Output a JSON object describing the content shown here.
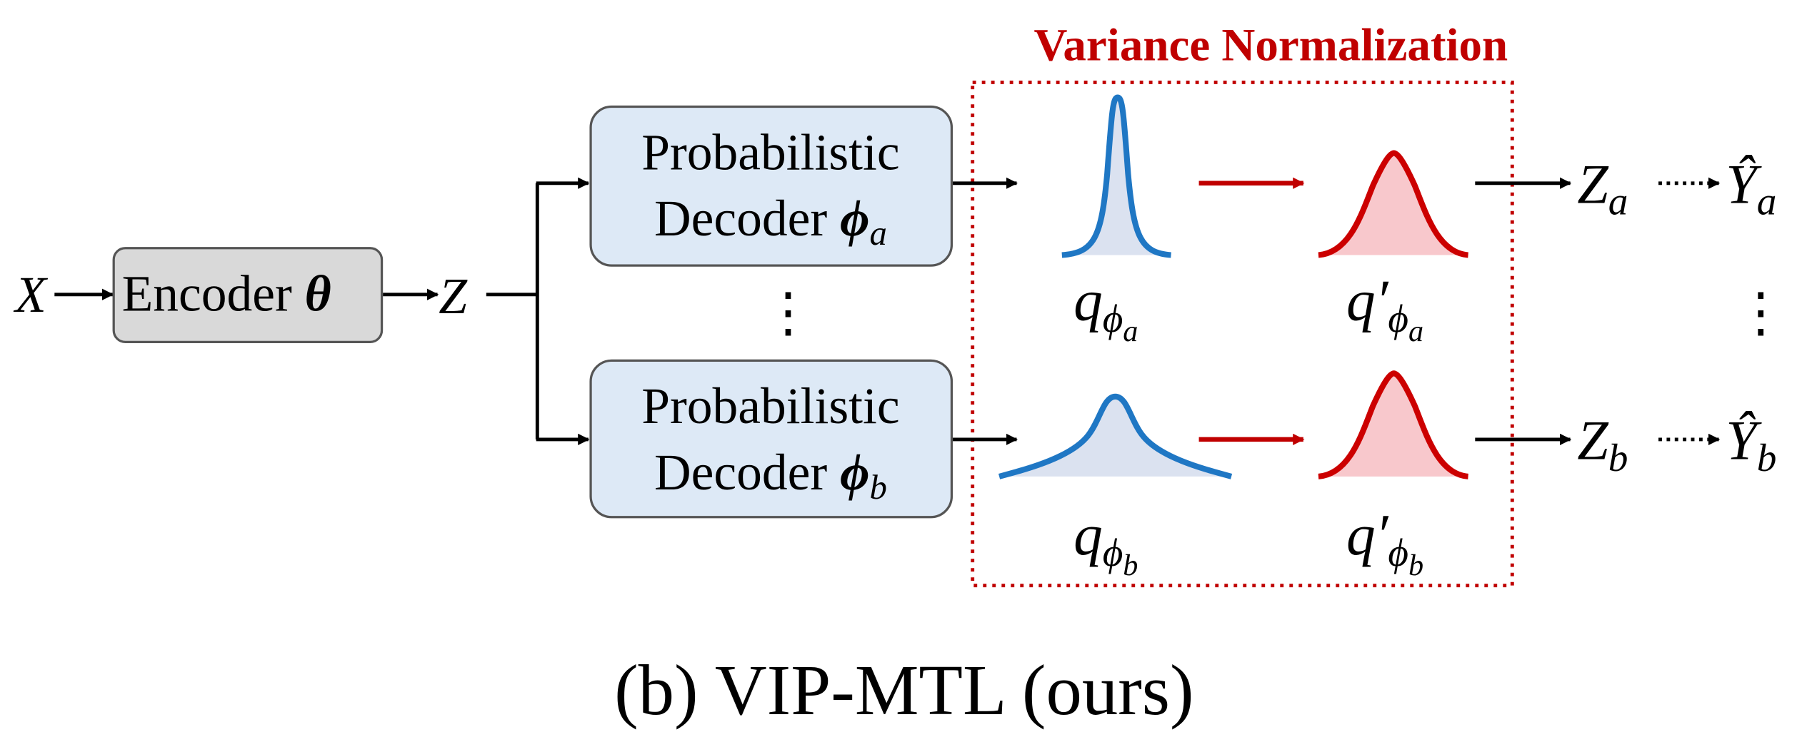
{
  "title": "Variance Normalization",
  "caption": "(b) VIP-MTL (ours)",
  "input": {
    "symbol": "X"
  },
  "encoder": {
    "label": "Encoder",
    "param": "θ"
  },
  "latent": {
    "symbol": "Z"
  },
  "decoders": [
    {
      "line1": "Probabilistic",
      "line2": "Decoder",
      "param": "ϕ",
      "sub": "a"
    },
    {
      "line1": "Probabilistic",
      "line2": "Decoder",
      "param": "ϕ",
      "sub": "b"
    }
  ],
  "vertical_ellipsis": "⋮",
  "distributions": {
    "orig_a": {
      "base": "q",
      "sub": "ϕ",
      "subsub": "a"
    },
    "norm_a": {
      "base": "q′",
      "sub": "ϕ",
      "subsub": "a"
    },
    "orig_b": {
      "base": "q",
      "sub": "ϕ",
      "subsub": "b"
    },
    "norm_b": {
      "base": "q′",
      "sub": "ϕ",
      "subsub": "b"
    }
  },
  "outputs": [
    {
      "z": "Z",
      "z_sub": "a",
      "y": "Ŷ",
      "y_sub": "a"
    },
    {
      "z": "Z",
      "z_sub": "b",
      "y": "Ŷ",
      "y_sub": "b"
    }
  ],
  "colors": {
    "title_red": "#c00000",
    "arrow_red": "#c00000",
    "blue_curve": "#1f77c4",
    "blue_fill": "#dbe2f0",
    "red_curve": "#cc0000",
    "red_fill": "#f8c8cc",
    "encoder_fill": "#d9d9d9",
    "decoder_fill": "#dde9f6",
    "box_border": "#555555"
  }
}
